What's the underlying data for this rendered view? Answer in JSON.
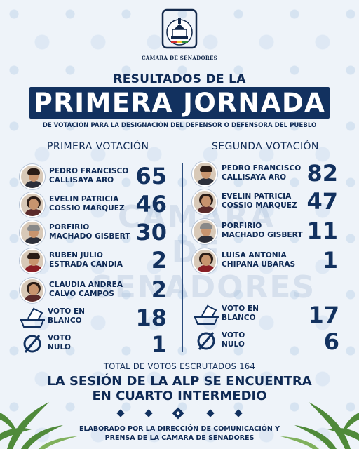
{
  "header": {
    "logo_caption": "CÁMARA DE SENADORES",
    "title_line1": "RESULTADOS DE LA",
    "title_line2": "PRIMERA JORNADA",
    "subtitle": "DE VOTACIÓN PARA LA DESIGNACIÓN  DEL DEFENSOR O DEFENSORA DEL PUEBLO"
  },
  "watermark": {
    "line1": "CÁMARA DE",
    "line2": "SENADORES"
  },
  "first_vote": {
    "heading": "PRIMERA VOTACIÓN",
    "candidates": [
      {
        "first": "PEDRO FRANCISCO",
        "last": "CALLISAYA ARO",
        "votes": "65"
      },
      {
        "first": "EVELIN PATRICIA",
        "last": "COSSIO MARQUEZ",
        "votes": "46"
      },
      {
        "first": "PORFIRIO",
        "last": "MACHADO GISBERT",
        "votes": "30"
      },
      {
        "first": "RUBEN JULIO",
        "last": "ESTRADA CANDIA",
        "votes": "2"
      },
      {
        "first": "CLAUDIA ANDREA",
        "last": "CALVO CAMPOS",
        "votes": "2"
      }
    ],
    "blank": {
      "line1": "VOTO EN",
      "line2": "BLANCO",
      "votes": "18"
    },
    "null": {
      "line1": "VOTO",
      "line2": "NULO",
      "votes": "1"
    }
  },
  "second_vote": {
    "heading": "SEGUNDA VOTACIÓN",
    "candidates": [
      {
        "first": "PEDRO FRANCISCO",
        "last": "CALLISAYA ARO",
        "votes": "82"
      },
      {
        "first": "EVELIN PATRICIA",
        "last": "COSSIO MARQUEZ",
        "votes": "47"
      },
      {
        "first": "PORFIRIO",
        "last": "MACHADO GISBERT",
        "votes": "11"
      },
      {
        "first": "LUISA ANTONIA",
        "last": "CHIPANA UBARAS",
        "votes": "1"
      }
    ],
    "blank": {
      "line1": "VOTO EN",
      "line2": "BLANCO",
      "votes": "17"
    },
    "null": {
      "line1": "VOTO",
      "line2": "NULO",
      "votes": "6"
    }
  },
  "summary": {
    "total": "TOTAL DE VOTOS ESCRUTADOS 164",
    "session_line1": "LA SESIÓN DE LA ALP SE ENCUENTRA",
    "session_line2": "EN CUARTO INTERMEDIO"
  },
  "footer": {
    "line1": "ELABORADO POR LA DIRECCIÓN DE COMUNICACIÓN Y",
    "line2": "PRENSA DE LA CÁMARA DE SENADORES"
  },
  "colors": {
    "navy": "#12315f",
    "background": "#eef3f9",
    "leaf_green": "#4f8a3a"
  },
  "icons": [
    "senate-logo-icon",
    "ballot-box-icon",
    "null-symbol-icon",
    "avatar-photo",
    "leaf-decoration"
  ]
}
